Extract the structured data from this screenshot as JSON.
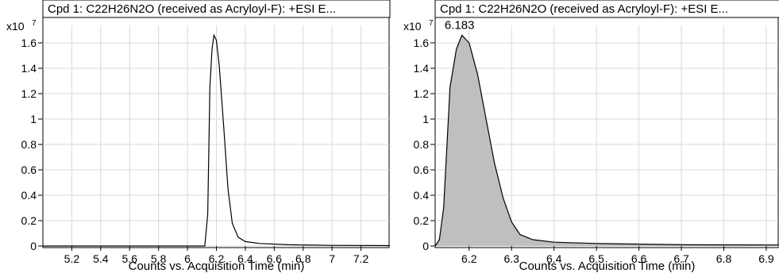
{
  "chart_data": [
    {
      "type": "line",
      "title": "Cpd 1: C22H26N2O (received as Acryloyl-F): +ESI E...",
      "xlabel": "Counts vs. Acquisition Time (min)",
      "y_multiplier": "x10",
      "y_multiplier_exp": "7",
      "xlim": [
        5.0,
        7.4
      ],
      "ylim": [
        0,
        1.7
      ],
      "xticks": [
        "5.2",
        "5.4",
        "5.6",
        "5.8",
        "6",
        "6.2",
        "6.4",
        "6.6",
        "6.8",
        "7",
        "7.2"
      ],
      "yticks": [
        "0",
        "0.2",
        "0.4",
        "0.6",
        "0.8",
        "1",
        "1.2",
        "1.4",
        "1.6"
      ],
      "grid": true,
      "series": [
        {
          "color": "#000000",
          "fill": false,
          "x": [
            5.0,
            6.12,
            6.14,
            6.155,
            6.17,
            6.183,
            6.2,
            6.22,
            6.25,
            6.28,
            6.31,
            6.35,
            6.4,
            6.5,
            6.7,
            7.0,
            7.4
          ],
          "y": [
            0.0,
            0.0,
            0.25,
            1.25,
            1.55,
            1.66,
            1.62,
            1.42,
            0.95,
            0.45,
            0.18,
            0.07,
            0.035,
            0.02,
            0.01,
            0.005,
            0.003
          ]
        }
      ]
    },
    {
      "type": "area",
      "title": "Cpd 1: C22H26N2O (received as Acryloyl-F): +ESI E...",
      "xlabel": "Counts vs. Acquisition Time (min)",
      "y_multiplier": "x10",
      "y_multiplier_exp": "7",
      "xlim": [
        6.12,
        6.93
      ],
      "ylim": [
        0,
        1.7
      ],
      "xticks": [
        "6.2",
        "6.3",
        "6.4",
        "6.5",
        "6.6",
        "6.7",
        "6.8",
        "6.9"
      ],
      "yticks": [
        "0",
        "0.2",
        "0.4",
        "0.6",
        "0.8",
        "1",
        "1.2",
        "1.4",
        "1.6"
      ],
      "grid": true,
      "annotations": [
        {
          "text": "6.183",
          "x": 6.183,
          "y": 1.66
        }
      ],
      "series": [
        {
          "color": "#000000",
          "fill": true,
          "fill_color": "#bfbfbf",
          "x": [
            6.12,
            6.13,
            6.14,
            6.155,
            6.17,
            6.183,
            6.2,
            6.22,
            6.24,
            6.26,
            6.28,
            6.3,
            6.32,
            6.35,
            6.4,
            6.5,
            6.7,
            6.93
          ],
          "y": [
            0.0,
            0.05,
            0.3,
            1.25,
            1.55,
            1.66,
            1.6,
            1.35,
            1.0,
            0.65,
            0.38,
            0.19,
            0.09,
            0.05,
            0.03,
            0.02,
            0.01,
            0.008
          ]
        }
      ]
    }
  ]
}
